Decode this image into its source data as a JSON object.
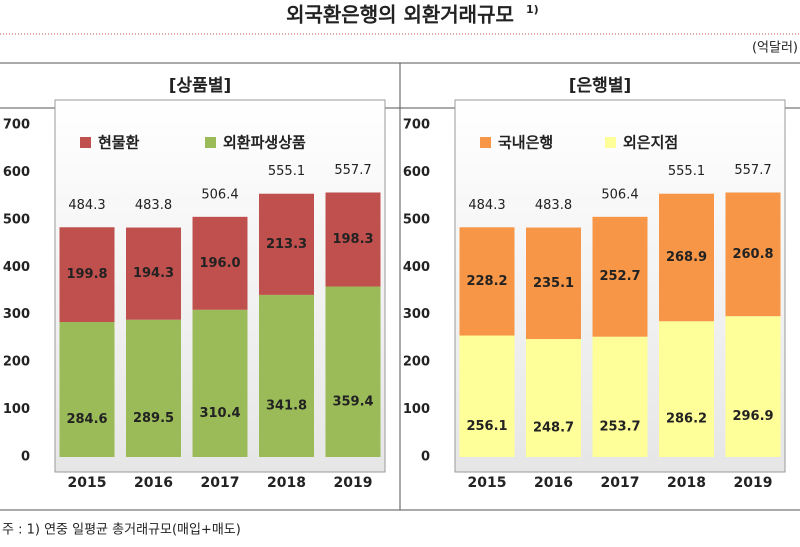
{
  "title": "외국환은행의 외환거래규모",
  "title_note": "1)",
  "unit": "(억달러)",
  "note": "주 : 1) 연중 일평균 총거래규모(매입+매도)",
  "chart_data": [
    {
      "type": "stacked-bar",
      "subtitle": "[상품별]",
      "categories": [
        "2015",
        "2016",
        "2017",
        "2018",
        "2019"
      ],
      "series": [
        {
          "name": "현물환",
          "color": "#c0504d",
          "values": [
            199.8,
            194.3,
            196.0,
            213.3,
            198.3
          ]
        },
        {
          "name": "외환파생상품",
          "color": "#9bbb59",
          "values": [
            284.6,
            289.5,
            310.4,
            341.8,
            359.4
          ]
        }
      ],
      "totals": [
        484.3,
        483.8,
        506.4,
        555.1,
        557.7
      ],
      "value_labels": [
        [
          "199.8",
          "194.3",
          "196.0",
          "213.3",
          "198.3"
        ],
        [
          "284.6",
          "289.5",
          "310.4",
          "341.8",
          "359.4"
        ]
      ],
      "ylim": [
        0,
        700
      ],
      "yticks": [
        0,
        100,
        200,
        300,
        400,
        500,
        600,
        700
      ]
    },
    {
      "type": "stacked-bar",
      "subtitle": "[은행별]",
      "categories": [
        "2015",
        "2016",
        "2017",
        "2018",
        "2019"
      ],
      "series": [
        {
          "name": "국내은행",
          "color": "#f79646",
          "values": [
            228.2,
            235.1,
            252.7,
            268.9,
            260.8
          ]
        },
        {
          "name": "외은지점",
          "color": "#ffff99",
          "values": [
            256.1,
            248.7,
            253.7,
            286.2,
            296.9
          ]
        }
      ],
      "totals": [
        484.3,
        483.8,
        506.4,
        555.1,
        557.7
      ],
      "ylim": [
        0,
        700
      ],
      "yticks": [
        0,
        100,
        200,
        300,
        400,
        500,
        600,
        700
      ]
    }
  ]
}
